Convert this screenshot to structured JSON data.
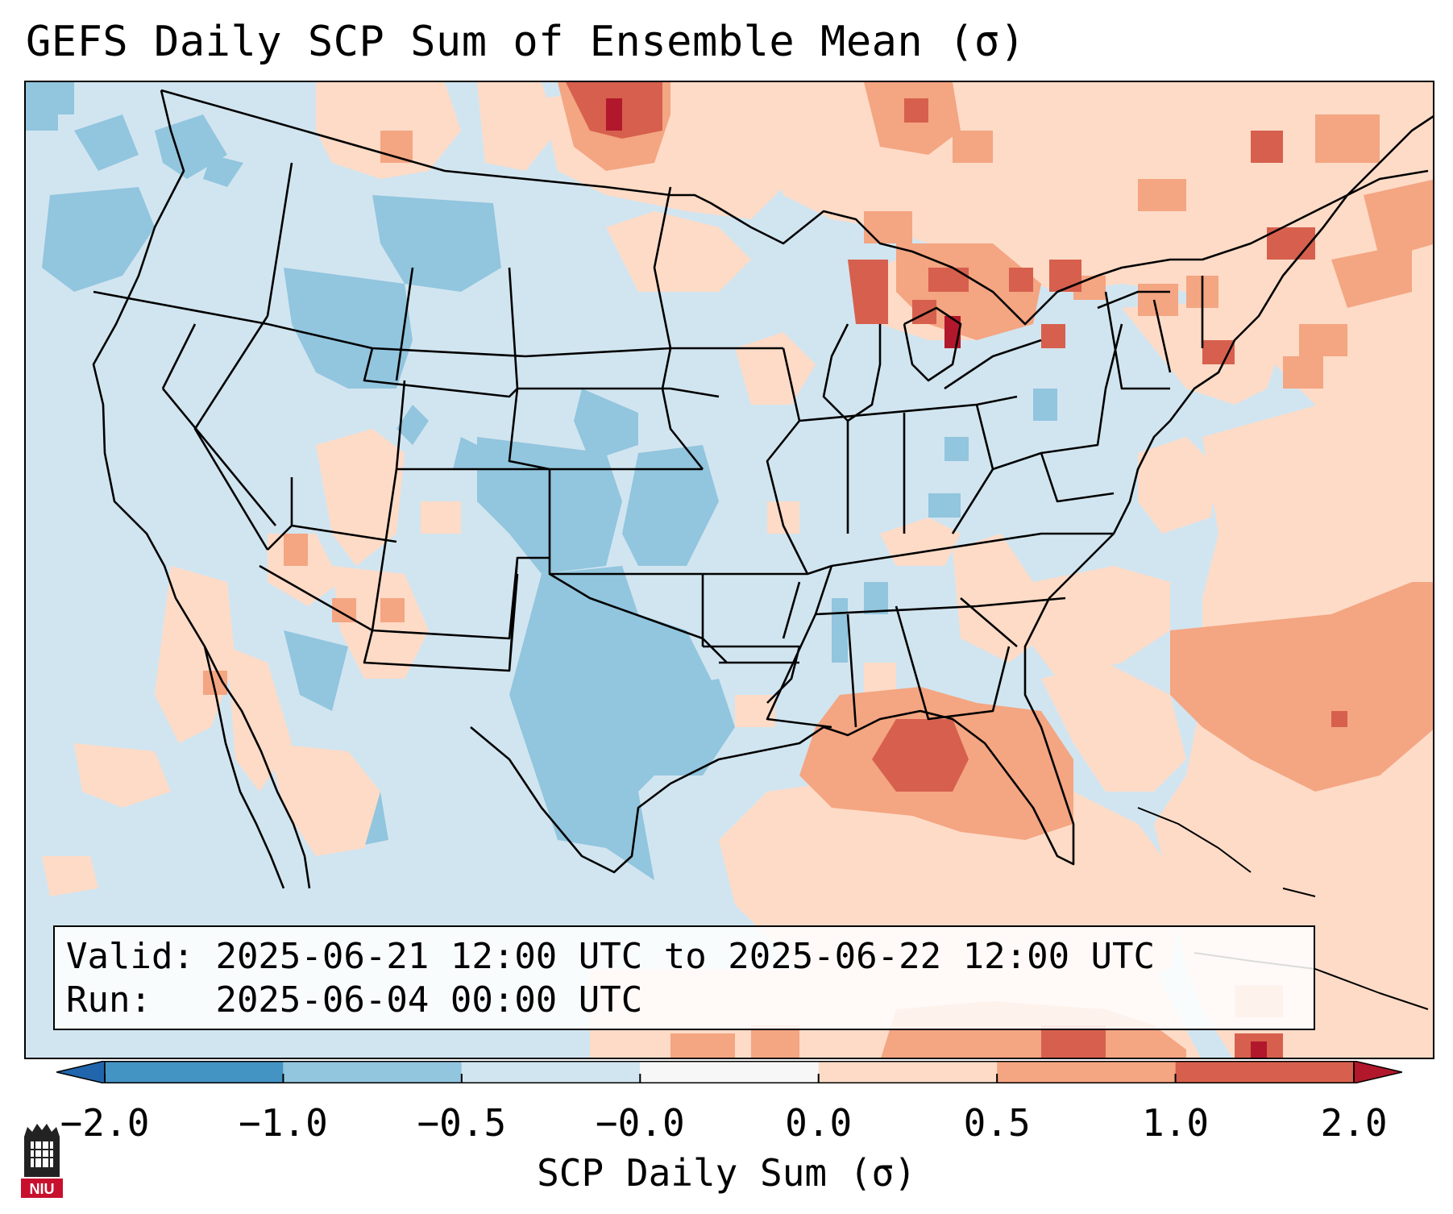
{
  "title": "GEFS Daily SCP Sum of Ensemble Mean (σ)",
  "info": {
    "valid_label": "Valid:",
    "valid_value": "2025-06-21 12:00 UTC to 2025-06-22 12:00 UTC",
    "run_label": "Run:",
    "run_value": "2025-06-04 00:00 UTC"
  },
  "colorbar": {
    "label": "SCP Daily Sum (σ)",
    "ticks": [
      "−2.0",
      "−1.0",
      "−0.5",
      "−0.0",
      "0.0",
      "0.5",
      "1.0",
      "2.0"
    ],
    "bins": [
      {
        "range": "-2.0 to -1.0",
        "color": "#4393c3"
      },
      {
        "range": "-1.0 to -0.5",
        "color": "#92c5de"
      },
      {
        "range": "-0.5 to -0.0",
        "color": "#d1e5f0"
      },
      {
        "range": "-0.0 to 0.0",
        "color": "#f7f7f7"
      },
      {
        "range": "0.0 to 0.5",
        "color": "#fddbc7"
      },
      {
        "range": "0.5 to 1.0",
        "color": "#f4a582"
      },
      {
        "range": "1.0 to 2.0",
        "color": "#d6604d"
      }
    ],
    "under_color": "#2166ac",
    "over_color": "#b2182b"
  },
  "logo": {
    "text": "NIU",
    "icon": "niu-tower-icon"
  },
  "map": {
    "region": "Continental United States",
    "projection": "Lambert Conformal",
    "base_color": "#d1e5f0"
  }
}
